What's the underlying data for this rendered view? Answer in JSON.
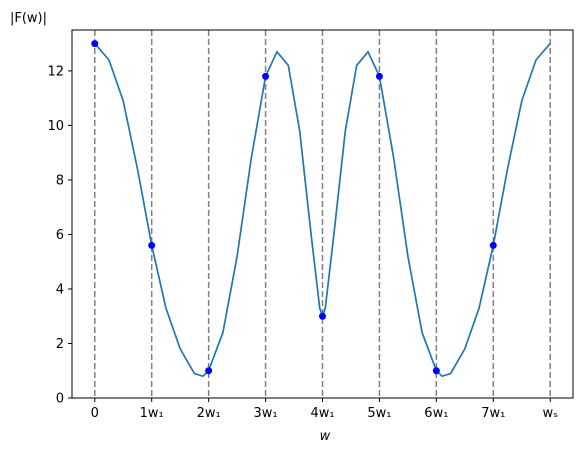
{
  "chart_data": {
    "type": "line",
    "ylabel": "|F(w)|",
    "xlabel": "w",
    "x_ticks": [
      {
        "x": 0,
        "label": "0"
      },
      {
        "x": 1,
        "label": "1w₁"
      },
      {
        "x": 2,
        "label": "2w₁"
      },
      {
        "x": 3,
        "label": "3w₁"
      },
      {
        "x": 4,
        "label": "4w₁"
      },
      {
        "x": 5,
        "label": "5w₁"
      },
      {
        "x": 6,
        "label": "6w₁"
      },
      {
        "x": 7,
        "label": "7w₁"
      },
      {
        "x": 8,
        "label": "wₛ"
      }
    ],
    "y_ticks": [
      0,
      2,
      4,
      6,
      8,
      10,
      12
    ],
    "xlim": [
      -0.4,
      8.4
    ],
    "ylim": [
      0,
      13.5
    ],
    "grid": false,
    "vertical_lines": [
      0,
      1,
      2,
      3,
      4,
      5,
      6,
      7,
      8
    ],
    "sample_points": [
      {
        "x": 0,
        "y": 13.0
      },
      {
        "x": 1,
        "y": 5.6
      },
      {
        "x": 2,
        "y": 1.0
      },
      {
        "x": 3,
        "y": 11.8
      },
      {
        "x": 4,
        "y": 3.0
      },
      {
        "x": 5,
        "y": 11.8
      },
      {
        "x": 6,
        "y": 1.0
      },
      {
        "x": 7,
        "y": 5.6
      }
    ],
    "curve": [
      {
        "x": 0.0,
        "y": 13.0
      },
      {
        "x": 0.25,
        "y": 12.4
      },
      {
        "x": 0.5,
        "y": 10.9
      },
      {
        "x": 0.75,
        "y": 8.4
      },
      {
        "x": 1.0,
        "y": 5.6
      },
      {
        "x": 1.25,
        "y": 3.3
      },
      {
        "x": 1.5,
        "y": 1.8
      },
      {
        "x": 1.75,
        "y": 0.9
      },
      {
        "x": 1.9,
        "y": 0.8
      },
      {
        "x": 2.0,
        "y": 1.0
      },
      {
        "x": 2.25,
        "y": 2.4
      },
      {
        "x": 2.5,
        "y": 5.2
      },
      {
        "x": 2.75,
        "y": 8.8
      },
      {
        "x": 3.0,
        "y": 11.8
      },
      {
        "x": 3.2,
        "y": 12.7
      },
      {
        "x": 3.4,
        "y": 12.2
      },
      {
        "x": 3.6,
        "y": 9.8
      },
      {
        "x": 3.8,
        "y": 6.0
      },
      {
        "x": 3.95,
        "y": 3.3
      },
      {
        "x": 4.0,
        "y": 3.0
      },
      {
        "x": 4.05,
        "y": 3.3
      },
      {
        "x": 4.2,
        "y": 6.0
      },
      {
        "x": 4.4,
        "y": 9.8
      },
      {
        "x": 4.6,
        "y": 12.2
      },
      {
        "x": 4.8,
        "y": 12.7
      },
      {
        "x": 5.0,
        "y": 11.8
      },
      {
        "x": 5.25,
        "y": 8.8
      },
      {
        "x": 5.5,
        "y": 5.2
      },
      {
        "x": 5.75,
        "y": 2.4
      },
      {
        "x": 6.0,
        "y": 1.0
      },
      {
        "x": 6.1,
        "y": 0.8
      },
      {
        "x": 6.25,
        "y": 0.9
      },
      {
        "x": 6.5,
        "y": 1.8
      },
      {
        "x": 6.75,
        "y": 3.3
      },
      {
        "x": 7.0,
        "y": 5.6
      },
      {
        "x": 7.25,
        "y": 8.4
      },
      {
        "x": 7.5,
        "y": 10.9
      },
      {
        "x": 7.75,
        "y": 12.4
      },
      {
        "x": 8.0,
        "y": 13.0
      }
    ],
    "colors": {
      "curve": "#1f77b4",
      "points": "#0000ff",
      "vlines": "#808080"
    }
  }
}
